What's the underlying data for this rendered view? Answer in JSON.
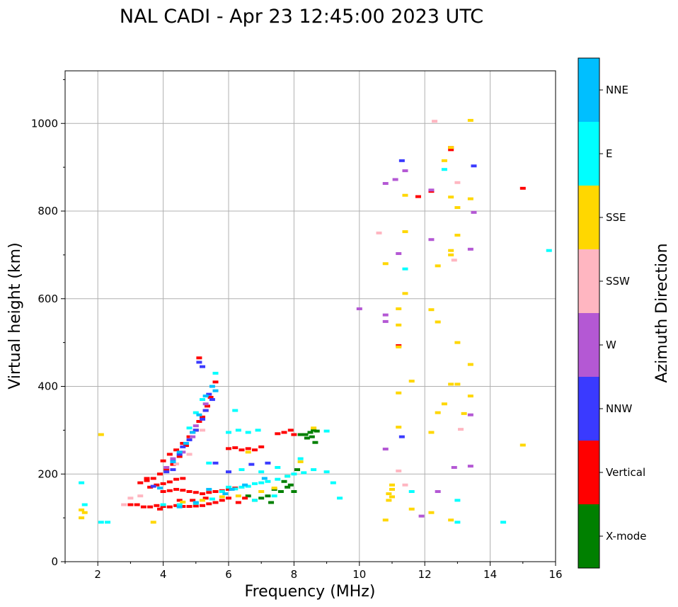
{
  "chart_data": {
    "type": "scatter",
    "title": "NAL CADI - Apr 23 12:45:00 2023 UTC",
    "xlabel": "Frequency (MHz)",
    "ylabel": "Virtual height (km)",
    "xlim": [
      1,
      16
    ],
    "ylim": [
      0,
      1120
    ],
    "xticks": [
      2,
      4,
      6,
      8,
      10,
      12,
      14,
      16
    ],
    "yticks": [
      0,
      200,
      400,
      600,
      800,
      1000
    ],
    "grid": true,
    "colorbar": {
      "label": "Azimuth Direction",
      "categories": [
        {
          "name": "X-mode",
          "color": "#008000"
        },
        {
          "name": "Vertical",
          "color": "#ff0000"
        },
        {
          "name": "NNW",
          "color": "#3a3aff"
        },
        {
          "name": "W",
          "color": "#b458d4"
        },
        {
          "name": "SSW",
          "color": "#ffb6c1"
        },
        {
          "name": "SSE",
          "color": "#ffd700"
        },
        {
          "name": "E",
          "color": "#00ffff"
        },
        {
          "name": "NNE",
          "color": "#00bfff"
        }
      ]
    },
    "series": [
      {
        "name": "X-mode",
        "points": [
          [
            8.2,
            290
          ],
          [
            8.35,
            290
          ],
          [
            8.5,
            295
          ],
          [
            8.6,
            300
          ],
          [
            8.7,
            298
          ],
          [
            8.55,
            285
          ],
          [
            8.4,
            282
          ],
          [
            8.65,
            272
          ],
          [
            7.8,
            170
          ],
          [
            7.9,
            175
          ],
          [
            8.0,
            160
          ],
          [
            7.6,
            160
          ],
          [
            7.2,
            150
          ],
          [
            7.0,
            145
          ],
          [
            7.3,
            135
          ],
          [
            6.8,
            140
          ],
          [
            8.1,
            210
          ],
          [
            7.7,
            183
          ],
          [
            7.4,
            165
          ],
          [
            6.6,
            150
          ]
        ]
      },
      {
        "name": "Vertical",
        "points": [
          [
            3.2,
            130
          ],
          [
            3.4,
            125
          ],
          [
            3.6,
            125
          ],
          [
            3.8,
            128
          ],
          [
            4.0,
            126
          ],
          [
            4.2,
            125
          ],
          [
            4.4,
            128
          ],
          [
            4.6,
            126
          ],
          [
            4.8,
            126
          ],
          [
            5.0,
            127
          ],
          [
            5.2,
            128
          ],
          [
            5.4,
            132
          ],
          [
            5.6,
            135
          ],
          [
            5.8,
            140
          ],
          [
            6.0,
            145
          ],
          [
            3.3,
            180
          ],
          [
            3.5,
            185
          ],
          [
            3.7,
            190
          ],
          [
            3.9,
            200
          ],
          [
            4.1,
            210
          ],
          [
            4.3,
            222
          ],
          [
            4.5,
            240
          ],
          [
            4.7,
            265
          ],
          [
            4.9,
            295
          ],
          [
            5.1,
            320
          ],
          [
            5.3,
            345
          ],
          [
            5.45,
            375
          ],
          [
            5.6,
            410
          ],
          [
            4.0,
            230
          ],
          [
            4.2,
            245
          ],
          [
            4.4,
            255
          ],
          [
            4.6,
            270
          ],
          [
            4.8,
            285
          ],
          [
            5.0,
            300
          ],
          [
            5.2,
            330
          ],
          [
            5.35,
            355
          ],
          [
            3.6,
            170
          ],
          [
            3.8,
            175
          ],
          [
            4.0,
            178
          ],
          [
            4.2,
            182
          ],
          [
            4.4,
            188
          ],
          [
            4.6,
            190
          ],
          [
            4.0,
            160
          ],
          [
            4.2,
            162
          ],
          [
            4.4,
            165
          ],
          [
            4.6,
            163
          ],
          [
            4.8,
            160
          ],
          [
            5.0,
            158
          ],
          [
            5.2,
            155
          ],
          [
            5.4,
            158
          ],
          [
            5.6,
            160
          ],
          [
            5.8,
            162
          ],
          [
            6.0,
            165
          ],
          [
            6.2,
            168
          ],
          [
            6.0,
            258
          ],
          [
            6.2,
            260
          ],
          [
            6.4,
            255
          ],
          [
            6.6,
            258
          ],
          [
            6.8,
            255
          ],
          [
            7.0,
            262
          ],
          [
            7.5,
            292
          ],
          [
            7.7,
            295
          ],
          [
            7.9,
            300
          ],
          [
            8.0,
            290
          ],
          [
            3.0,
            130
          ],
          [
            3.9,
            120
          ],
          [
            5.1,
            465
          ],
          [
            4.5,
            140
          ],
          [
            4.9,
            140
          ],
          [
            5.3,
            145
          ],
          [
            6.3,
            135
          ],
          [
            6.5,
            145
          ],
          [
            3.5,
            190
          ],
          [
            11.2,
            493
          ],
          [
            11.8,
            833
          ],
          [
            12.8,
            945
          ],
          [
            15.0,
            852
          ],
          [
            12.2,
            845
          ],
          [
            12.8,
            940
          ]
        ]
      },
      {
        "name": "NNW",
        "points": [
          [
            4.3,
            230
          ],
          [
            4.5,
            245
          ],
          [
            4.6,
            262
          ],
          [
            4.8,
            278
          ],
          [
            5.0,
            300
          ],
          [
            5.2,
            325
          ],
          [
            5.3,
            345
          ],
          [
            5.5,
            370
          ],
          [
            3.7,
            172
          ],
          [
            4.1,
            205
          ],
          [
            4.3,
            210
          ],
          [
            5.6,
            225
          ],
          [
            6.0,
            205
          ],
          [
            6.7,
            222
          ],
          [
            7.2,
            225
          ],
          [
            5.1,
            455
          ],
          [
            5.2,
            445
          ],
          [
            11.3,
            915
          ],
          [
            13.5,
            903
          ],
          [
            11.3,
            285
          ],
          [
            5.4,
            382
          ]
        ]
      },
      {
        "name": "W",
        "points": [
          [
            4.1,
            215
          ],
          [
            4.3,
            235
          ],
          [
            4.6,
            250
          ],
          [
            4.9,
            285
          ],
          [
            5.0,
            310
          ],
          [
            5.3,
            360
          ],
          [
            10.0,
            577
          ],
          [
            10.8,
            863
          ],
          [
            11.1,
            872
          ],
          [
            11.4,
            892
          ],
          [
            12.2,
            735
          ],
          [
            13.4,
            713
          ],
          [
            13.5,
            797
          ],
          [
            10.8,
            563
          ],
          [
            10.8,
            548
          ],
          [
            12.9,
            215
          ],
          [
            13.4,
            335
          ],
          [
            13.4,
            218
          ],
          [
            10.8,
            257
          ],
          [
            12.4,
            160
          ],
          [
            11.2,
            703
          ],
          [
            12.2,
            848
          ],
          [
            11.9,
            104
          ]
        ]
      },
      {
        "name": "SSW",
        "points": [
          [
            4.4,
            223
          ],
          [
            4.8,
            245
          ],
          [
            5.2,
            300
          ],
          [
            2.8,
            130
          ],
          [
            3.0,
            145
          ],
          [
            3.3,
            150
          ],
          [
            10.6,
            750
          ],
          [
            12.3,
            1005
          ],
          [
            13.0,
            865
          ],
          [
            12.9,
            688
          ],
          [
            13.1,
            302
          ],
          [
            11.2,
            207
          ],
          [
            11.4,
            175
          ]
        ]
      },
      {
        "name": "SSE",
        "points": [
          [
            1.5,
            100
          ],
          [
            1.5,
            118
          ],
          [
            1.6,
            112
          ],
          [
            2.1,
            290
          ],
          [
            3.7,
            90
          ],
          [
            4.6,
            136
          ],
          [
            5.2,
            140
          ],
          [
            5.8,
            148
          ],
          [
            6.3,
            150
          ],
          [
            6.6,
            250
          ],
          [
            7.0,
            160
          ],
          [
            7.4,
            168
          ],
          [
            7.8,
            195
          ],
          [
            8.2,
            228
          ],
          [
            8.6,
            305
          ],
          [
            10.8,
            680
          ],
          [
            11.2,
            577
          ],
          [
            11.2,
            540
          ],
          [
            11.2,
            490
          ],
          [
            11.2,
            385
          ],
          [
            11.2,
            307
          ],
          [
            11.4,
            753
          ],
          [
            11.4,
            836
          ],
          [
            11.4,
            612
          ],
          [
            11.6,
            412
          ],
          [
            12.2,
            575
          ],
          [
            12.4,
            547
          ],
          [
            12.4,
            675
          ],
          [
            12.6,
            915
          ],
          [
            12.4,
            340
          ],
          [
            12.6,
            360
          ],
          [
            12.8,
            405
          ],
          [
            12.8,
            710
          ],
          [
            12.8,
            700
          ],
          [
            12.8,
            832
          ],
          [
            13.0,
            808
          ],
          [
            13.0,
            745
          ],
          [
            13.0,
            500
          ],
          [
            13.0,
            405
          ],
          [
            13.2,
            338
          ],
          [
            13.4,
            378
          ],
          [
            13.4,
            450
          ],
          [
            13.4,
            828
          ],
          [
            13.4,
            1007
          ],
          [
            12.8,
            945
          ],
          [
            12.8,
            95
          ],
          [
            12.2,
            295
          ],
          [
            12.2,
            112
          ],
          [
            15.0,
            266
          ],
          [
            11.6,
            120
          ],
          [
            11.0,
            175
          ],
          [
            11.0,
            165
          ],
          [
            11.0,
            148
          ],
          [
            10.8,
            95
          ],
          [
            10.9,
            140
          ],
          [
            10.9,
            155
          ]
        ]
      },
      {
        "name": "E",
        "points": [
          [
            1.5,
            180
          ],
          [
            1.6,
            130
          ],
          [
            2.1,
            90
          ],
          [
            2.3,
            90
          ],
          [
            4.0,
            130
          ],
          [
            4.5,
            130
          ],
          [
            5.0,
            133
          ],
          [
            5.5,
            143
          ],
          [
            5.8,
            160
          ],
          [
            6.0,
            170
          ],
          [
            6.2,
            166
          ],
          [
            6.4,
            170
          ],
          [
            6.6,
            172
          ],
          [
            6.8,
            178
          ],
          [
            7.0,
            180
          ],
          [
            7.2,
            183
          ],
          [
            7.5,
            188
          ],
          [
            7.8,
            195
          ],
          [
            8.0,
            200
          ],
          [
            8.3,
            203
          ],
          [
            8.6,
            210
          ],
          [
            9.0,
            205
          ],
          [
            9.2,
            180
          ],
          [
            9.4,
            145
          ],
          [
            6.0,
            295
          ],
          [
            6.3,
            300
          ],
          [
            6.6,
            295
          ],
          [
            6.9,
            300
          ],
          [
            5.6,
            430
          ],
          [
            5.2,
            370
          ],
          [
            5.0,
            340
          ],
          [
            4.8,
            305
          ],
          [
            5.4,
            225
          ],
          [
            6.4,
            210
          ],
          [
            7.0,
            205
          ],
          [
            7.5,
            215
          ],
          [
            8.2,
            235
          ],
          [
            9.0,
            298
          ],
          [
            11.4,
            668
          ],
          [
            11.6,
            160
          ],
          [
            12.6,
            895
          ],
          [
            13.0,
            140
          ],
          [
            13.0,
            90
          ],
          [
            14.4,
            90
          ],
          [
            15.8,
            710
          ],
          [
            6.2,
            345
          ],
          [
            6.8,
            140
          ],
          [
            7.4,
            150
          ]
        ]
      },
      {
        "name": "NNE",
        "points": [
          [
            4.5,
            125
          ],
          [
            5.0,
            135
          ],
          [
            5.4,
            165
          ],
          [
            5.5,
            400
          ],
          [
            5.3,
            378
          ],
          [
            5.1,
            335
          ],
          [
            4.9,
            295
          ],
          [
            4.7,
            270
          ],
          [
            4.5,
            250
          ],
          [
            4.3,
            228
          ],
          [
            5.6,
            390
          ],
          [
            5.9,
            155
          ],
          [
            6.1,
            165
          ],
          [
            6.5,
            175
          ],
          [
            7.1,
            190
          ],
          [
            3.9,
            168
          ]
        ]
      }
    ]
  }
}
